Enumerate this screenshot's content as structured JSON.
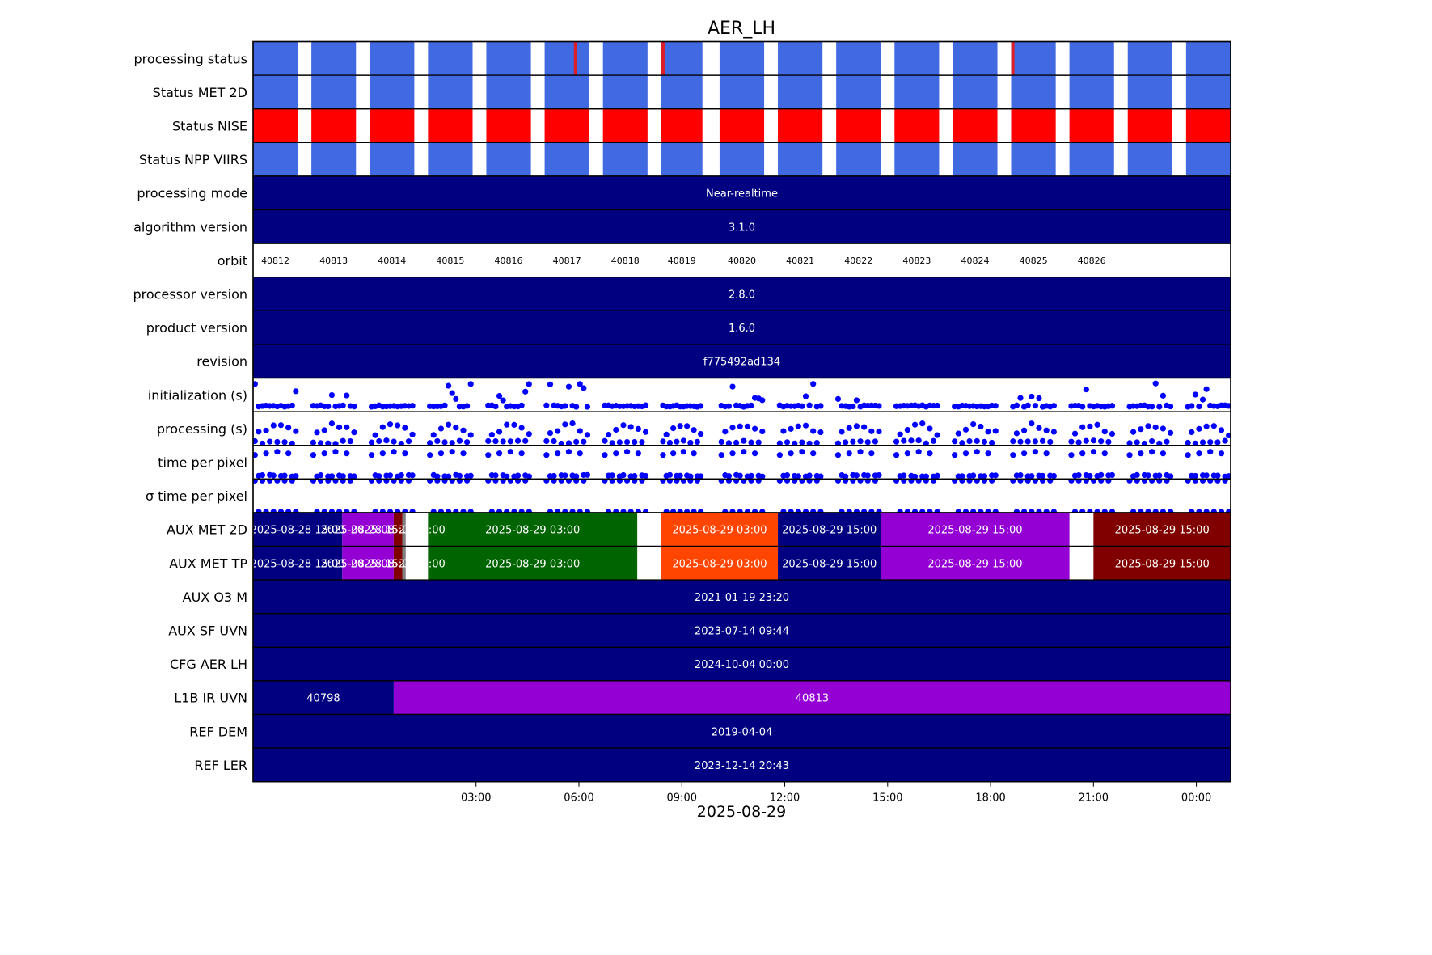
{
  "chart_data": {
    "type": "timeline",
    "title": "AER_LH",
    "xlabel": "2025-08-29",
    "x_range_hours": [
      -3.5,
      25.0
    ],
    "x_ticks": [
      {
        "h": 3,
        "label": "03:00"
      },
      {
        "h": 6,
        "label": "06:00"
      },
      {
        "h": 9,
        "label": "09:00"
      },
      {
        "h": 12,
        "label": "12:00"
      },
      {
        "h": 15,
        "label": "15:00"
      },
      {
        "h": 18,
        "label": "18:00"
      },
      {
        "h": 21,
        "label": "21:00"
      },
      {
        "h": 24,
        "label": "00:00"
      }
    ],
    "colors": {
      "blue": "#4169e1",
      "red": "#ff0000",
      "navy": "#000080",
      "purple": "#9400d3",
      "darkred": "#800000",
      "green": "#006400",
      "orange": "#ff4500",
      "gray": "#808080",
      "marker": "#0000ff",
      "flag": "#dc1e28"
    },
    "rows": [
      {
        "label": "processing status",
        "kind": "orbits",
        "color": "blue"
      },
      {
        "label": "Status MET 2D",
        "kind": "orbits",
        "color": "blue"
      },
      {
        "label": "Status NISE",
        "kind": "orbits",
        "color": "red"
      },
      {
        "label": "Status NPP VIIRS",
        "kind": "orbits",
        "color": "blue"
      },
      {
        "label": "processing mode",
        "kind": "solid",
        "text": "Near-realtime"
      },
      {
        "label": "algorithm version",
        "kind": "solid",
        "text": "3.1.0"
      },
      {
        "label": "orbit",
        "kind": "orbitlabels"
      },
      {
        "label": "processor version",
        "kind": "solid",
        "text": "2.8.0"
      },
      {
        "label": "product version",
        "kind": "solid",
        "text": "1.6.0"
      },
      {
        "label": "revision",
        "kind": "solid",
        "text": "f775492ad134"
      },
      {
        "label": "initialization (s)",
        "kind": "scatter",
        "pattern": "init"
      },
      {
        "label": "processing (s)",
        "kind": "scatter",
        "pattern": "proc"
      },
      {
        "label": "time per pixel",
        "kind": "scatter",
        "pattern": "tpp"
      },
      {
        "label": "σ time per pixel",
        "kind": "scatter",
        "pattern": "sigma"
      },
      {
        "label": "AUX MET 2D",
        "kind": "segments",
        "segments": "aux_met"
      },
      {
        "label": "AUX MET TP",
        "kind": "segments",
        "segments": "aux_met"
      },
      {
        "label": "AUX O3   M",
        "kind": "solid",
        "text": "2021-01-19 23:20"
      },
      {
        "label": "AUX SF UVN",
        "kind": "solid",
        "text": "2023-07-14 09:44"
      },
      {
        "label": "CFG AER LH",
        "kind": "solid",
        "text": "2024-10-04 00:00"
      },
      {
        "label": "L1B IR UVN",
        "kind": "segments",
        "segments": "l1b"
      },
      {
        "label": "REF DEM",
        "kind": "solid",
        "text": "2019-04-04"
      },
      {
        "label": "REF LER",
        "kind": "solid",
        "text": "2023-12-14 20:43"
      }
    ],
    "orbits": [
      {
        "number": "40812",
        "start": -3.5,
        "end": -2.2
      },
      {
        "number": "40813",
        "start": -1.8,
        "end": -0.5
      },
      {
        "number": "40814",
        "start": -0.1,
        "end": 1.2
      },
      {
        "number": "40815",
        "start": 1.6,
        "end": 2.9
      },
      {
        "number": "40816",
        "start": 3.3,
        "end": 4.6
      },
      {
        "number": "40817",
        "start": 5.0,
        "end": 6.3
      },
      {
        "number": "40818",
        "start": 6.7,
        "end": 8.0
      },
      {
        "number": "40819",
        "start": 8.4,
        "end": 9.6
      },
      {
        "number": "40820",
        "start": 10.1,
        "end": 11.4
      },
      {
        "number": "40821",
        "start": 11.8,
        "end": 13.1
      },
      {
        "number": "40822",
        "start": 13.5,
        "end": 14.8
      },
      {
        "number": "40823",
        "start": 15.2,
        "end": 16.5
      },
      {
        "number": "40824",
        "start": 16.9,
        "end": 18.2
      },
      {
        "number": "40825",
        "start": 18.6,
        "end": 19.9
      },
      {
        "number": "40826",
        "start": 20.3,
        "end": 21.6
      },
      {
        "number": "",
        "start": 22.0,
        "end": 23.3
      },
      {
        "number": "",
        "start": 23.7,
        "end": 25.0
      }
    ],
    "status_flags": [
      {
        "row": "processing status",
        "h": 5.9
      },
      {
        "row": "processing status",
        "h": 8.45
      },
      {
        "row": "processing status",
        "h": 18.65
      }
    ],
    "segment_sets": {
      "aux_met": [
        {
          "start": -3.5,
          "end": -0.9,
          "color": "navy",
          "text": "2025-08-28 15:00"
        },
        {
          "start": -0.9,
          "end": 0.6,
          "color": "purple",
          "text": "2025-08-28 15:00"
        },
        {
          "start": 0.6,
          "end": 0.85,
          "color": "darkred",
          "text": "2025-08-28 15:00"
        },
        {
          "start": 0.85,
          "end": 0.95,
          "color": "gray",
          "text": ""
        },
        {
          "start": 1.6,
          "end": 7.7,
          "color": "green",
          "text": "2025-08-29 03:00"
        },
        {
          "start": 8.4,
          "end": 11.8,
          "color": "orange",
          "text": "2025-08-29 03:00"
        },
        {
          "start": 11.8,
          "end": 14.8,
          "color": "navy",
          "text": "2025-08-29 15:00"
        },
        {
          "start": 14.8,
          "end": 20.3,
          "color": "purple",
          "text": "2025-08-29 15:00"
        },
        {
          "start": 21.0,
          "end": 25.0,
          "color": "darkred",
          "text": "2025-08-29 15:00"
        }
      ],
      "l1b": [
        {
          "start": -3.5,
          "end": 0.6,
          "color": "navy",
          "text": "40798"
        },
        {
          "start": 0.6,
          "end": 25.0,
          "color": "purple",
          "text": "40813"
        }
      ]
    }
  }
}
